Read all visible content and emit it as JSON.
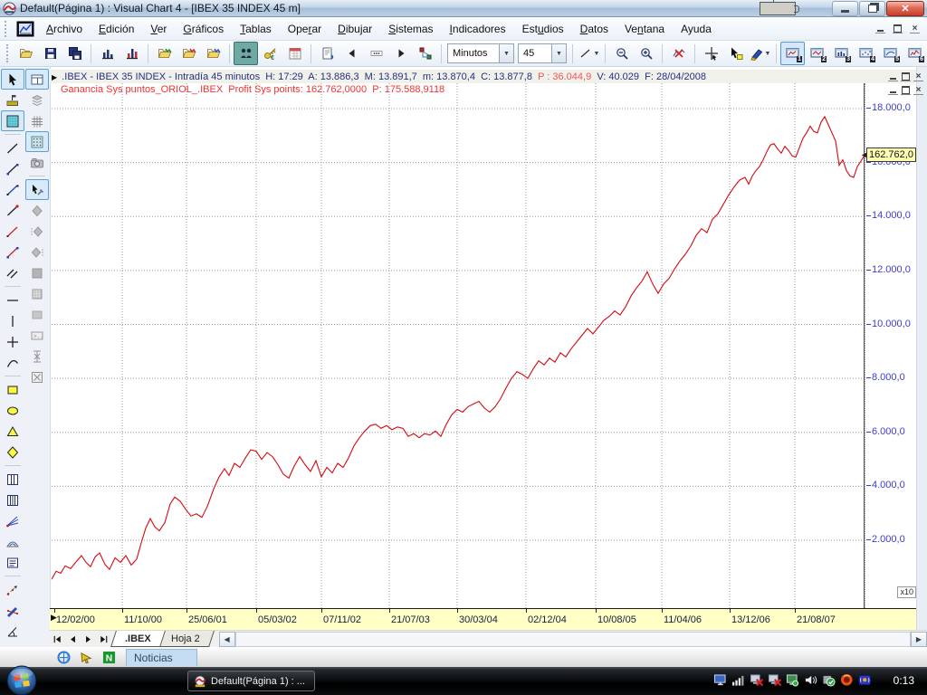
{
  "window": {
    "title": "Default(Página 1) : Visual Chart 4 - [IBEX 35 INDEX 45 m]",
    "buttons": [
      "minimize",
      "restore",
      "close"
    ],
    "mdi_buttons": [
      "minimize",
      "restore",
      "close"
    ]
  },
  "menubar": {
    "items": [
      {
        "label": "Archivo",
        "accel": 0
      },
      {
        "label": "Edición",
        "accel": 0
      },
      {
        "label": "Ver",
        "accel": 0
      },
      {
        "label": "Gráficos",
        "accel": 0
      },
      {
        "label": "Tablas",
        "accel": 0
      },
      {
        "label": "Operar",
        "accel": 3
      },
      {
        "label": "Dibujar",
        "accel": 0
      },
      {
        "label": "Sistemas",
        "accel": 0
      },
      {
        "label": "Indicadores",
        "accel": 0
      },
      {
        "label": "Estudios",
        "accel": 3
      },
      {
        "label": "Datos",
        "accel": 0
      },
      {
        "label": "Ventana",
        "accel": 2
      },
      {
        "label": "Ayuda",
        "accel": -1
      }
    ]
  },
  "toolbar": {
    "items": [
      {
        "type": "button",
        "icon": "folder-open"
      },
      {
        "type": "button",
        "icon": "floppy"
      },
      {
        "type": "button",
        "icon": "floppy-multi"
      },
      {
        "type": "sep"
      },
      {
        "type": "button",
        "icon": "chart-bars"
      },
      {
        "type": "button",
        "icon": "chart-bars-red"
      },
      {
        "type": "sep"
      },
      {
        "type": "button",
        "icon": "folder-chart-green"
      },
      {
        "type": "button",
        "icon": "folder-chart-red"
      },
      {
        "type": "button",
        "icon": "folder-chart-blue"
      },
      {
        "type": "sep"
      },
      {
        "type": "button",
        "icon": "people",
        "sel": "teal"
      },
      {
        "type": "button",
        "icon": "key-euro"
      },
      {
        "type": "button",
        "icon": "calendar"
      },
      {
        "type": "sep"
      },
      {
        "type": "button",
        "icon": "page-flip"
      },
      {
        "type": "button",
        "icon": "nav-left"
      },
      {
        "type": "button",
        "icon": "nav-dots"
      },
      {
        "type": "button",
        "icon": "nav-right"
      },
      {
        "type": "button",
        "icon": "nodes"
      },
      {
        "type": "sep"
      },
      {
        "type": "combo",
        "name": "interval-unit",
        "value": "Minutos",
        "width": 72
      },
      {
        "type": "combo",
        "name": "interval-value",
        "value": "45",
        "width": 52
      },
      {
        "type": "sep"
      },
      {
        "type": "button",
        "icon": "line-style",
        "dropdown": true
      },
      {
        "type": "sep"
      },
      {
        "type": "button",
        "icon": "zoom-out"
      },
      {
        "type": "button",
        "icon": "zoom-in"
      },
      {
        "type": "sep"
      },
      {
        "type": "button",
        "icon": "chart-off"
      },
      {
        "type": "sep"
      },
      {
        "type": "button",
        "icon": "crosshair"
      },
      {
        "type": "button",
        "icon": "cursor-note"
      },
      {
        "type": "button",
        "icon": "marker-pen",
        "dropdown": true
      },
      {
        "type": "sep"
      },
      {
        "type": "button",
        "icon": "preset-screen",
        "num": "1",
        "sel": "frame"
      },
      {
        "type": "button",
        "icon": "preset-screen-red",
        "num": "2"
      },
      {
        "type": "button",
        "icon": "preset-screen-bars",
        "num": "3"
      },
      {
        "type": "button",
        "icon": "preset-screen-dots",
        "num": "4"
      },
      {
        "type": "button",
        "icon": "preset-screen-line",
        "num": "5"
      },
      {
        "type": "button",
        "icon": "preset-screen-red2",
        "num": "6"
      }
    ]
  },
  "left_toolbar": {
    "col1": [
      {
        "icon": "cursor",
        "sel": true
      },
      {
        "icon": "measure-pin"
      },
      {
        "icon": "pattern-square",
        "sel": true
      },
      "-",
      {
        "icon": "line-black"
      },
      {
        "icon": "line-blue-ends"
      },
      {
        "icon": "line-blue"
      },
      {
        "icon": "line-red-end"
      },
      {
        "icon": "line-red"
      },
      {
        "icon": "line-red-blue"
      },
      {
        "icon": "parallel-lines"
      },
      "-",
      {
        "icon": "h-line"
      },
      {
        "icon": "v-line"
      },
      {
        "icon": "cross-line"
      },
      {
        "icon": "curve-line"
      },
      "-",
      {
        "icon": "rect-yellow"
      },
      {
        "icon": "ellipse-yellow"
      },
      {
        "icon": "triangle-yellow"
      },
      {
        "icon": "diamond-yellow"
      },
      "-",
      {
        "icon": "cols-two"
      },
      {
        "icon": "cols-three"
      },
      {
        "icon": "fib-fan"
      },
      {
        "icon": "fib-arcs"
      },
      {
        "icon": "notes-box"
      },
      "-",
      {
        "icon": "dotted-arrow"
      },
      {
        "icon": "pen-strike"
      },
      {
        "icon": "angle-tool"
      },
      {
        "icon": "arrow-up"
      },
      {
        "icon": "arrow-down"
      },
      {
        "icon": "text-label"
      },
      {
        "icon": "band-yellow"
      }
    ],
    "col2": [
      {
        "icon": "window-layout",
        "sel": true
      },
      {
        "icon": "layers"
      },
      {
        "icon": "grid-hash"
      },
      {
        "icon": "grid-dots",
        "sel": true
      },
      {
        "icon": "camera"
      },
      "-",
      {
        "icon": "pointer-hammer",
        "sel": true
      },
      {
        "icon": "diamond-grey"
      },
      {
        "icon": "diamond-dots-l"
      },
      {
        "icon": "diamond-dots-r"
      },
      {
        "icon": "square-grey"
      },
      {
        "icon": "square-hatch"
      },
      {
        "icon": "square-flat"
      },
      {
        "icon": "prompt-box"
      },
      {
        "icon": "valve-tool"
      },
      {
        "icon": "box-x"
      }
    ]
  },
  "chart_header": {
    "marker": "arrow-right-icon",
    "segments": [
      {
        "t": " .IBEX - IBEX 35 INDEX - Intradía 45 minutos  ",
        "red": false
      },
      {
        "t": "H: 17:29  A: 13.886,3  M: 13.891,7  m: 13.870,4  C: 13.877,8  ",
        "red": false
      },
      {
        "t": "P : 36.044,9",
        "red": true
      },
      {
        "t": "  V: 40.029  F: 28/04/2008",
        "red": false
      }
    ]
  },
  "chart_data": {
    "type": "line",
    "title": "Ganancia Sys puntos_ORIOL_.IBEX  Profit Sys points: 162.762,0000  P: 175.588,9118",
    "subtitle_color": "#ef3333",
    "grid": true,
    "scale_label": "x10",
    "last_value_tag": "162.762,0",
    "ylim": [
      -500,
      18950
    ],
    "y_ticks": [
      {
        "v": 18000,
        "label": "18.000,0"
      },
      {
        "v": 16000,
        "label": "16.000,0"
      },
      {
        "v": 14000,
        "label": "14.000,0"
      },
      {
        "v": 12000,
        "label": "12.000,0"
      },
      {
        "v": 10000,
        "label": "10.000,0"
      },
      {
        "v": 8000,
        "label": "8.000,0"
      },
      {
        "v": 6000,
        "label": "6.000,0"
      },
      {
        "v": 4000,
        "label": "4.000,0"
      },
      {
        "v": 2000,
        "label": "2.000,0"
      }
    ],
    "x_ticks": [
      {
        "x": 60,
        "label": "12/02/00"
      },
      {
        "x": 135,
        "label": "11/10/00"
      },
      {
        "x": 206,
        "label": "25/06/01"
      },
      {
        "x": 283,
        "label": "05/03/02"
      },
      {
        "x": 355,
        "label": "07/11/02"
      },
      {
        "x": 430,
        "label": "21/07/03"
      },
      {
        "x": 505,
        "label": "30/03/04"
      },
      {
        "x": 581,
        "label": "02/12/04"
      },
      {
        "x": 658,
        "label": "10/08/05"
      },
      {
        "x": 731,
        "label": "11/04/06"
      },
      {
        "x": 806,
        "label": "13/12/06"
      },
      {
        "x": 878,
        "label": "21/08/07"
      }
    ],
    "v_grid_x": [
      78,
      149,
      226,
      298,
      373,
      448,
      524,
      601,
      674,
      749,
      821
    ],
    "series": [
      {
        "name": "Profit Sys points",
        "color": "#d40a10",
        "points": [
          [
            0,
            550
          ],
          [
            5,
            850
          ],
          [
            10,
            780
          ],
          [
            15,
            1050
          ],
          [
            21,
            950
          ],
          [
            27,
            1200
          ],
          [
            33,
            1430
          ],
          [
            38,
            1180
          ],
          [
            43,
            1020
          ],
          [
            48,
            1380
          ],
          [
            53,
            1530
          ],
          [
            59,
            1100
          ],
          [
            64,
            920
          ],
          [
            70,
            1350
          ],
          [
            76,
            1180
          ],
          [
            82,
            1430
          ],
          [
            88,
            1080
          ],
          [
            94,
            1300
          ],
          [
            99,
            1900
          ],
          [
            104,
            2450
          ],
          [
            109,
            2800
          ],
          [
            114,
            2500
          ],
          [
            119,
            2350
          ],
          [
            125,
            2650
          ],
          [
            131,
            3350
          ],
          [
            136,
            3600
          ],
          [
            142,
            3450
          ],
          [
            148,
            3150
          ],
          [
            154,
            2900
          ],
          [
            160,
            2980
          ],
          [
            166,
            2850
          ],
          [
            172,
            3250
          ],
          [
            179,
            3900
          ],
          [
            185,
            4350
          ],
          [
            191,
            4650
          ],
          [
            196,
            4400
          ],
          [
            202,
            4850
          ],
          [
            208,
            4700
          ],
          [
            214,
            5050
          ],
          [
            220,
            5350
          ],
          [
            226,
            5300
          ],
          [
            232,
            5000
          ],
          [
            238,
            5250
          ],
          [
            244,
            5100
          ],
          [
            250,
            4800
          ],
          [
            256,
            4450
          ],
          [
            262,
            4300
          ],
          [
            268,
            4750
          ],
          [
            274,
            5100
          ],
          [
            280,
            4800
          ],
          [
            286,
            4550
          ],
          [
            292,
            4950
          ],
          [
            298,
            4350
          ],
          [
            304,
            4700
          ],
          [
            310,
            4500
          ],
          [
            316,
            4850
          ],
          [
            322,
            4700
          ],
          [
            328,
            5050
          ],
          [
            334,
            5500
          ],
          [
            340,
            5800
          ],
          [
            346,
            6050
          ],
          [
            352,
            6250
          ],
          [
            358,
            6300
          ],
          [
            364,
            6150
          ],
          [
            370,
            6250
          ],
          [
            376,
            6100
          ],
          [
            382,
            6200
          ],
          [
            388,
            6150
          ],
          [
            394,
            5850
          ],
          [
            400,
            5950
          ],
          [
            406,
            5800
          ],
          [
            412,
            5950
          ],
          [
            418,
            5900
          ],
          [
            424,
            6050
          ],
          [
            430,
            5850
          ],
          [
            436,
            6300
          ],
          [
            442,
            6650
          ],
          [
            448,
            6850
          ],
          [
            454,
            6750
          ],
          [
            460,
            6950
          ],
          [
            466,
            7050
          ],
          [
            472,
            7150
          ],
          [
            478,
            6900
          ],
          [
            484,
            6750
          ],
          [
            490,
            6950
          ],
          [
            496,
            7250
          ],
          [
            502,
            7650
          ],
          [
            508,
            8000
          ],
          [
            514,
            8250
          ],
          [
            520,
            8150
          ],
          [
            526,
            8000
          ],
          [
            532,
            8350
          ],
          [
            538,
            8650
          ],
          [
            544,
            8500
          ],
          [
            550,
            8750
          ],
          [
            556,
            8600
          ],
          [
            562,
            8950
          ],
          [
            568,
            8800
          ],
          [
            574,
            9100
          ],
          [
            580,
            9350
          ],
          [
            586,
            9600
          ],
          [
            592,
            9850
          ],
          [
            598,
            9650
          ],
          [
            604,
            9900
          ],
          [
            610,
            10150
          ],
          [
            616,
            10300
          ],
          [
            622,
            10500
          ],
          [
            628,
            10350
          ],
          [
            634,
            10650
          ],
          [
            640,
            11050
          ],
          [
            646,
            11350
          ],
          [
            652,
            11600
          ],
          [
            658,
            11950
          ],
          [
            664,
            11500
          ],
          [
            670,
            11150
          ],
          [
            676,
            11500
          ],
          [
            682,
            11700
          ],
          [
            688,
            12050
          ],
          [
            694,
            12350
          ],
          [
            700,
            12600
          ],
          [
            706,
            12900
          ],
          [
            712,
            13300
          ],
          [
            718,
            13550
          ],
          [
            724,
            13400
          ],
          [
            730,
            13900
          ],
          [
            736,
            14100
          ],
          [
            742,
            14450
          ],
          [
            748,
            14800
          ],
          [
            754,
            15100
          ],
          [
            760,
            15350
          ],
          [
            766,
            15450
          ],
          [
            770,
            15200
          ],
          [
            774,
            15500
          ],
          [
            778,
            15700
          ],
          [
            782,
            15850
          ],
          [
            786,
            16100
          ],
          [
            790,
            16400
          ],
          [
            794,
            16650
          ],
          [
            798,
            16700
          ],
          [
            802,
            16500
          ],
          [
            806,
            16350
          ],
          [
            810,
            16600
          ],
          [
            814,
            16450
          ],
          [
            818,
            16250
          ],
          [
            822,
            16200
          ],
          [
            826,
            16550
          ],
          [
            830,
            16900
          ],
          [
            834,
            17100
          ],
          [
            838,
            17350
          ],
          [
            842,
            17150
          ],
          [
            846,
            17100
          ],
          [
            850,
            17500
          ],
          [
            854,
            17700
          ],
          [
            858,
            17400
          ],
          [
            862,
            17100
          ],
          [
            866,
            16800
          ],
          [
            870,
            15900
          ],
          [
            874,
            16100
          ],
          [
            878,
            15700
          ],
          [
            882,
            15500
          ],
          [
            886,
            15450
          ],
          [
            890,
            15850
          ],
          [
            894,
            16050
          ],
          [
            898,
            16280
          ]
        ]
      }
    ]
  },
  "tab_bar": {
    "nav": [
      "nav-first",
      "nav-prev",
      "nav-next",
      "nav-last"
    ],
    "tabs": [
      {
        "label": ".IBEX",
        "active": true
      },
      {
        "label": "Hoja 2",
        "active": false
      }
    ]
  },
  "noticias": {
    "icons": [
      "ie",
      "yellow-pointer",
      "news-n"
    ],
    "label": "Noticias"
  },
  "taskbar": {
    "app_button": "Default(Página 1) : ...",
    "clock": "0:13",
    "tray": [
      "monitor",
      "signal-bars",
      "pc-red-x",
      "pc-red-x2",
      "pc-green",
      "speaker",
      "shield-check",
      "orange-ring",
      "blue-beacon"
    ]
  }
}
